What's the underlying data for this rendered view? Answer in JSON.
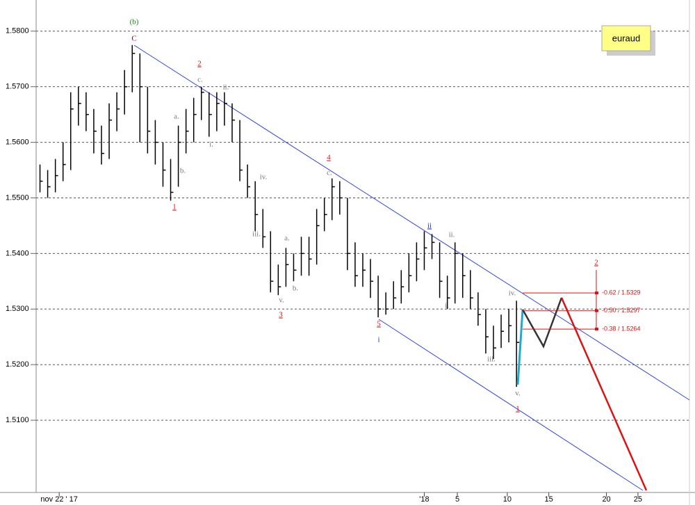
{
  "chart_data": {
    "type": "hlc",
    "symbol": "euraud",
    "color": "#000000",
    "grid": true,
    "ylim": [
      1.497,
      1.5856
    ],
    "yticks": [
      {
        "value": 1.58,
        "label": "1.5800"
      },
      {
        "value": 1.57,
        "label": "1.5700"
      },
      {
        "value": 1.56,
        "label": "1.5600"
      },
      {
        "value": 1.55,
        "label": "1.5500"
      },
      {
        "value": 1.54,
        "label": "1.5400"
      },
      {
        "value": 1.53,
        "label": "1.5300"
      },
      {
        "value": 1.52,
        "label": "1.5200"
      },
      {
        "value": 1.51,
        "label": "1.5100"
      }
    ],
    "xlim": [
      -0.5,
      84.5
    ],
    "xticks": [
      {
        "value": 2.5,
        "label": "nov 22 ' 17"
      },
      {
        "value": 50,
        "label": "'18"
      },
      {
        "value": 54.3,
        "label": "5"
      },
      {
        "value": 60.8,
        "label": "10"
      },
      {
        "value": 66.2,
        "label": "15"
      },
      {
        "value": 73.7,
        "label": "20"
      },
      {
        "value": 77.8,
        "label": "25"
      }
    ],
    "high": [
      1.556,
      1.555,
      1.557,
      1.56,
      1.569,
      1.57,
      1.569,
      1.566,
      1.563,
      1.567,
      1.569,
      1.573,
      1.5775,
      1.576,
      1.57,
      1.564,
      1.56,
      1.557,
      1.563,
      1.566,
      1.568,
      1.57,
      1.569,
      1.569,
      1.569,
      1.567,
      1.564,
      1.556,
      1.553,
      1.548,
      1.544,
      1.538,
      1.541,
      1.54,
      1.543,
      1.543,
      1.548,
      1.55,
      1.5535,
      1.553,
      1.55,
      1.542,
      1.54,
      1.539,
      1.536,
      1.533,
      1.535,
      1.537,
      1.54,
      1.542,
      1.544,
      1.5435,
      1.542,
      1.536,
      1.542,
      1.54,
      1.537,
      1.533,
      1.53,
      1.527,
      1.529,
      1.53,
      1.5315
    ],
    "low": [
      1.551,
      1.55,
      1.551,
      1.553,
      1.555,
      1.563,
      1.562,
      1.558,
      1.556,
      1.557,
      1.562,
      1.565,
      1.569,
      1.56,
      1.558,
      1.556,
      1.552,
      1.5495,
      1.552,
      1.558,
      1.56,
      1.564,
      1.561,
      1.562,
      1.563,
      1.56,
      1.553,
      1.55,
      1.544,
      1.541,
      1.533,
      1.5325,
      1.534,
      1.535,
      1.536,
      1.536,
      1.538,
      1.544,
      1.546,
      1.547,
      1.537,
      1.534,
      1.534,
      1.532,
      1.5285,
      1.529,
      1.53,
      1.531,
      1.533,
      1.535,
      1.537,
      1.539,
      1.532,
      1.53,
      1.531,
      1.532,
      1.53,
      1.527,
      1.522,
      1.521,
      1.523,
      1.524,
      1.516
    ],
    "close": [
      1.553,
      1.552,
      1.554,
      1.556,
      1.566,
      1.567,
      1.565,
      1.562,
      1.558,
      1.564,
      1.566,
      1.57,
      1.576,
      1.57,
      1.562,
      1.56,
      1.555,
      1.551,
      1.56,
      1.562,
      1.565,
      1.569,
      1.565,
      1.567,
      1.567,
      1.564,
      1.555,
      1.552,
      1.547,
      1.543,
      1.535,
      1.534,
      1.538,
      1.537,
      1.54,
      1.539,
      1.545,
      1.547,
      1.552,
      1.55,
      1.54,
      1.536,
      1.537,
      1.535,
      1.53,
      1.53,
      1.532,
      1.534,
      1.536,
      1.539,
      1.541,
      1.542,
      1.535,
      1.532,
      1.54,
      1.536,
      1.532,
      1.529,
      1.525,
      1.523,
      1.526,
      1.527,
      1.524
    ],
    "annotations": [
      "(b)",
      "C",
      "2",
      "1",
      "c.",
      "ii.",
      "a.",
      "b.",
      "i.",
      "iv.",
      "iii.",
      "a.",
      "b.",
      "v.",
      "3",
      "4",
      "c.",
      "5",
      "i",
      "ii",
      "ii.",
      "i.",
      "iv.",
      "iii.",
      "v.",
      "1",
      "2"
    ],
    "fib_levels": [
      {
        "value": 1.5329,
        "label": "-0.62 / 1.5329"
      },
      {
        "value": 1.5297,
        "label": "-0.50 / 1.5297"
      },
      {
        "value": 1.5264,
        "label": "-0.38 / 1.5264"
      }
    ]
  }
}
